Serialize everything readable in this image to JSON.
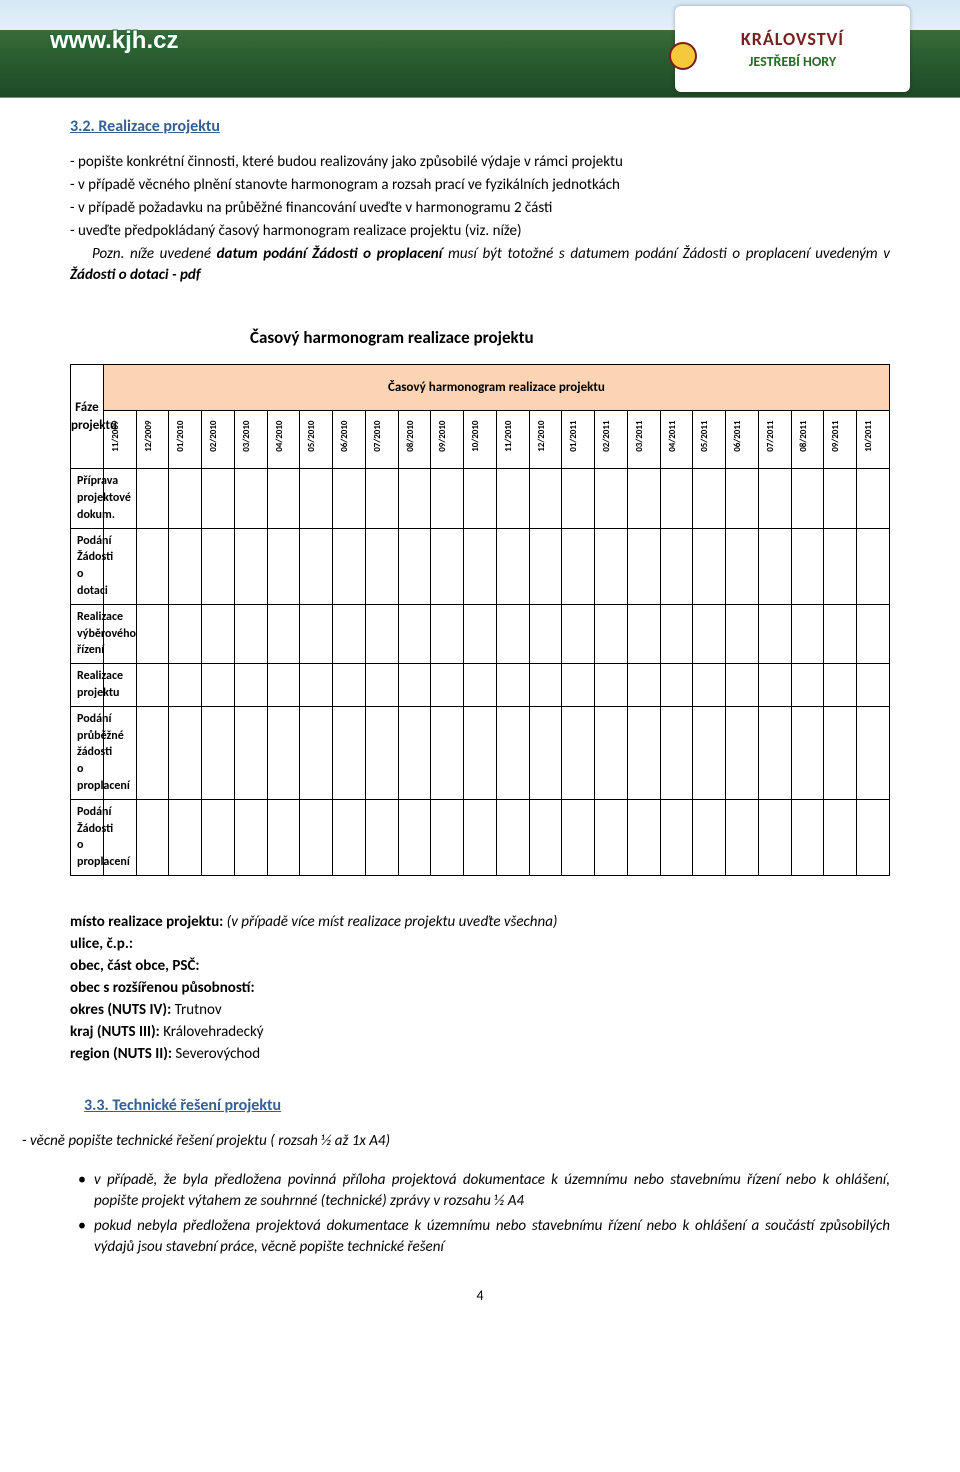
{
  "banner": {
    "url_text": "www.kjh.cz",
    "logo_line1": "KRÁLOVSTVÍ",
    "logo_line2": "JESTŘEBÍ HORY"
  },
  "section_32": {
    "title": "3.2. Realizace projektu",
    "lines": [
      "- popište konkrétní činnosti, které budou realizovány jako způsobilé výdaje v rámci projektu",
      "- v případě věcného plnění stanovte harmonogram a rozsah prací ve fyzikálních jednotkách",
      "- v případě požadavku na průběžné financování uveďte v harmonogramu 2 části",
      "- uveďte předpokládaný časový harmonogram realizace projektu (viz. níže)"
    ],
    "pozn_label": "Pozn. ",
    "pozn_pre": "níže uvedené ",
    "pozn_bold1": "datum podání Žádosti o proplacení",
    "pozn_mid": " musí být totožné s datumem podání Žádosti o proplacení uvedeným v ",
    "pozn_bold2": "Žádosti o dotaci - pdf"
  },
  "chart": {
    "title": "Časový harmonogram realizace projektu",
    "header_top": "Časový harmonogram realizace projektu",
    "phase_header": "Fáze projektu",
    "months": [
      "11/2009",
      "12/2009",
      "01/2010",
      "02/2010",
      "03/2010",
      "04/2010",
      "05/2010",
      "06/2010",
      "07/2010",
      "08/2010",
      "09/2010",
      "10/2010",
      "11/2010",
      "12/2010",
      "01/2011",
      "02/2011",
      "03/2011",
      "04/2011",
      "05/2011",
      "06/2011",
      "07/2011",
      "08/2011",
      "09/2011",
      "10/2011"
    ],
    "rows": [
      "Příprava projektové dokum.",
      "Podání Žádosti o dotaci",
      "Realizace výběrového řízení",
      "Realizace projektu",
      "Podání průběžné žádosti o proplacení",
      "Podání Žádosti o proplacení"
    ],
    "header_bg": "#fbd4b4",
    "border_color": "#000000",
    "col_width_first": 204,
    "col_width_month": 25
  },
  "location": {
    "heading_prefix": "místo realizace projektu:",
    "heading_suffix": " (v případě více míst realizace projektu uveďte všechna)",
    "ulice": "ulice, č.p.:",
    "obec": "obec, část obce, PSČ:",
    "orp": "obec s rozšířenou působností:",
    "okres_label": "okres  (NUTS IV):",
    "okres_value": " Trutnov",
    "kraj_label": "kraj     (NUTS III):",
    "kraj_value": "  Královehradecký",
    "region_label": "region (NUTS II):",
    "region_value": "  Severovýchod"
  },
  "section_33": {
    "title": "3.3. Technické řešení projektu",
    "lead": "- věcně popište technické řešení projektu ( rozsah ½ až 1x A4)",
    "bullets": [
      "v případě, že byla předložena povinná příloha projektová dokumentace k územnímu nebo stavebnímu řízení nebo k ohlášení, popište projekt výtahem ze souhrnné (technické) zprávy v rozsahu ½ A4",
      "pokud nebyla předložena projektová dokumentace k územnímu nebo stavebnímu řízení nebo k ohlášení a součástí způsobilých výdajů jsou stavební práce, věcně popište technické řešení"
    ]
  },
  "page_number": "4"
}
